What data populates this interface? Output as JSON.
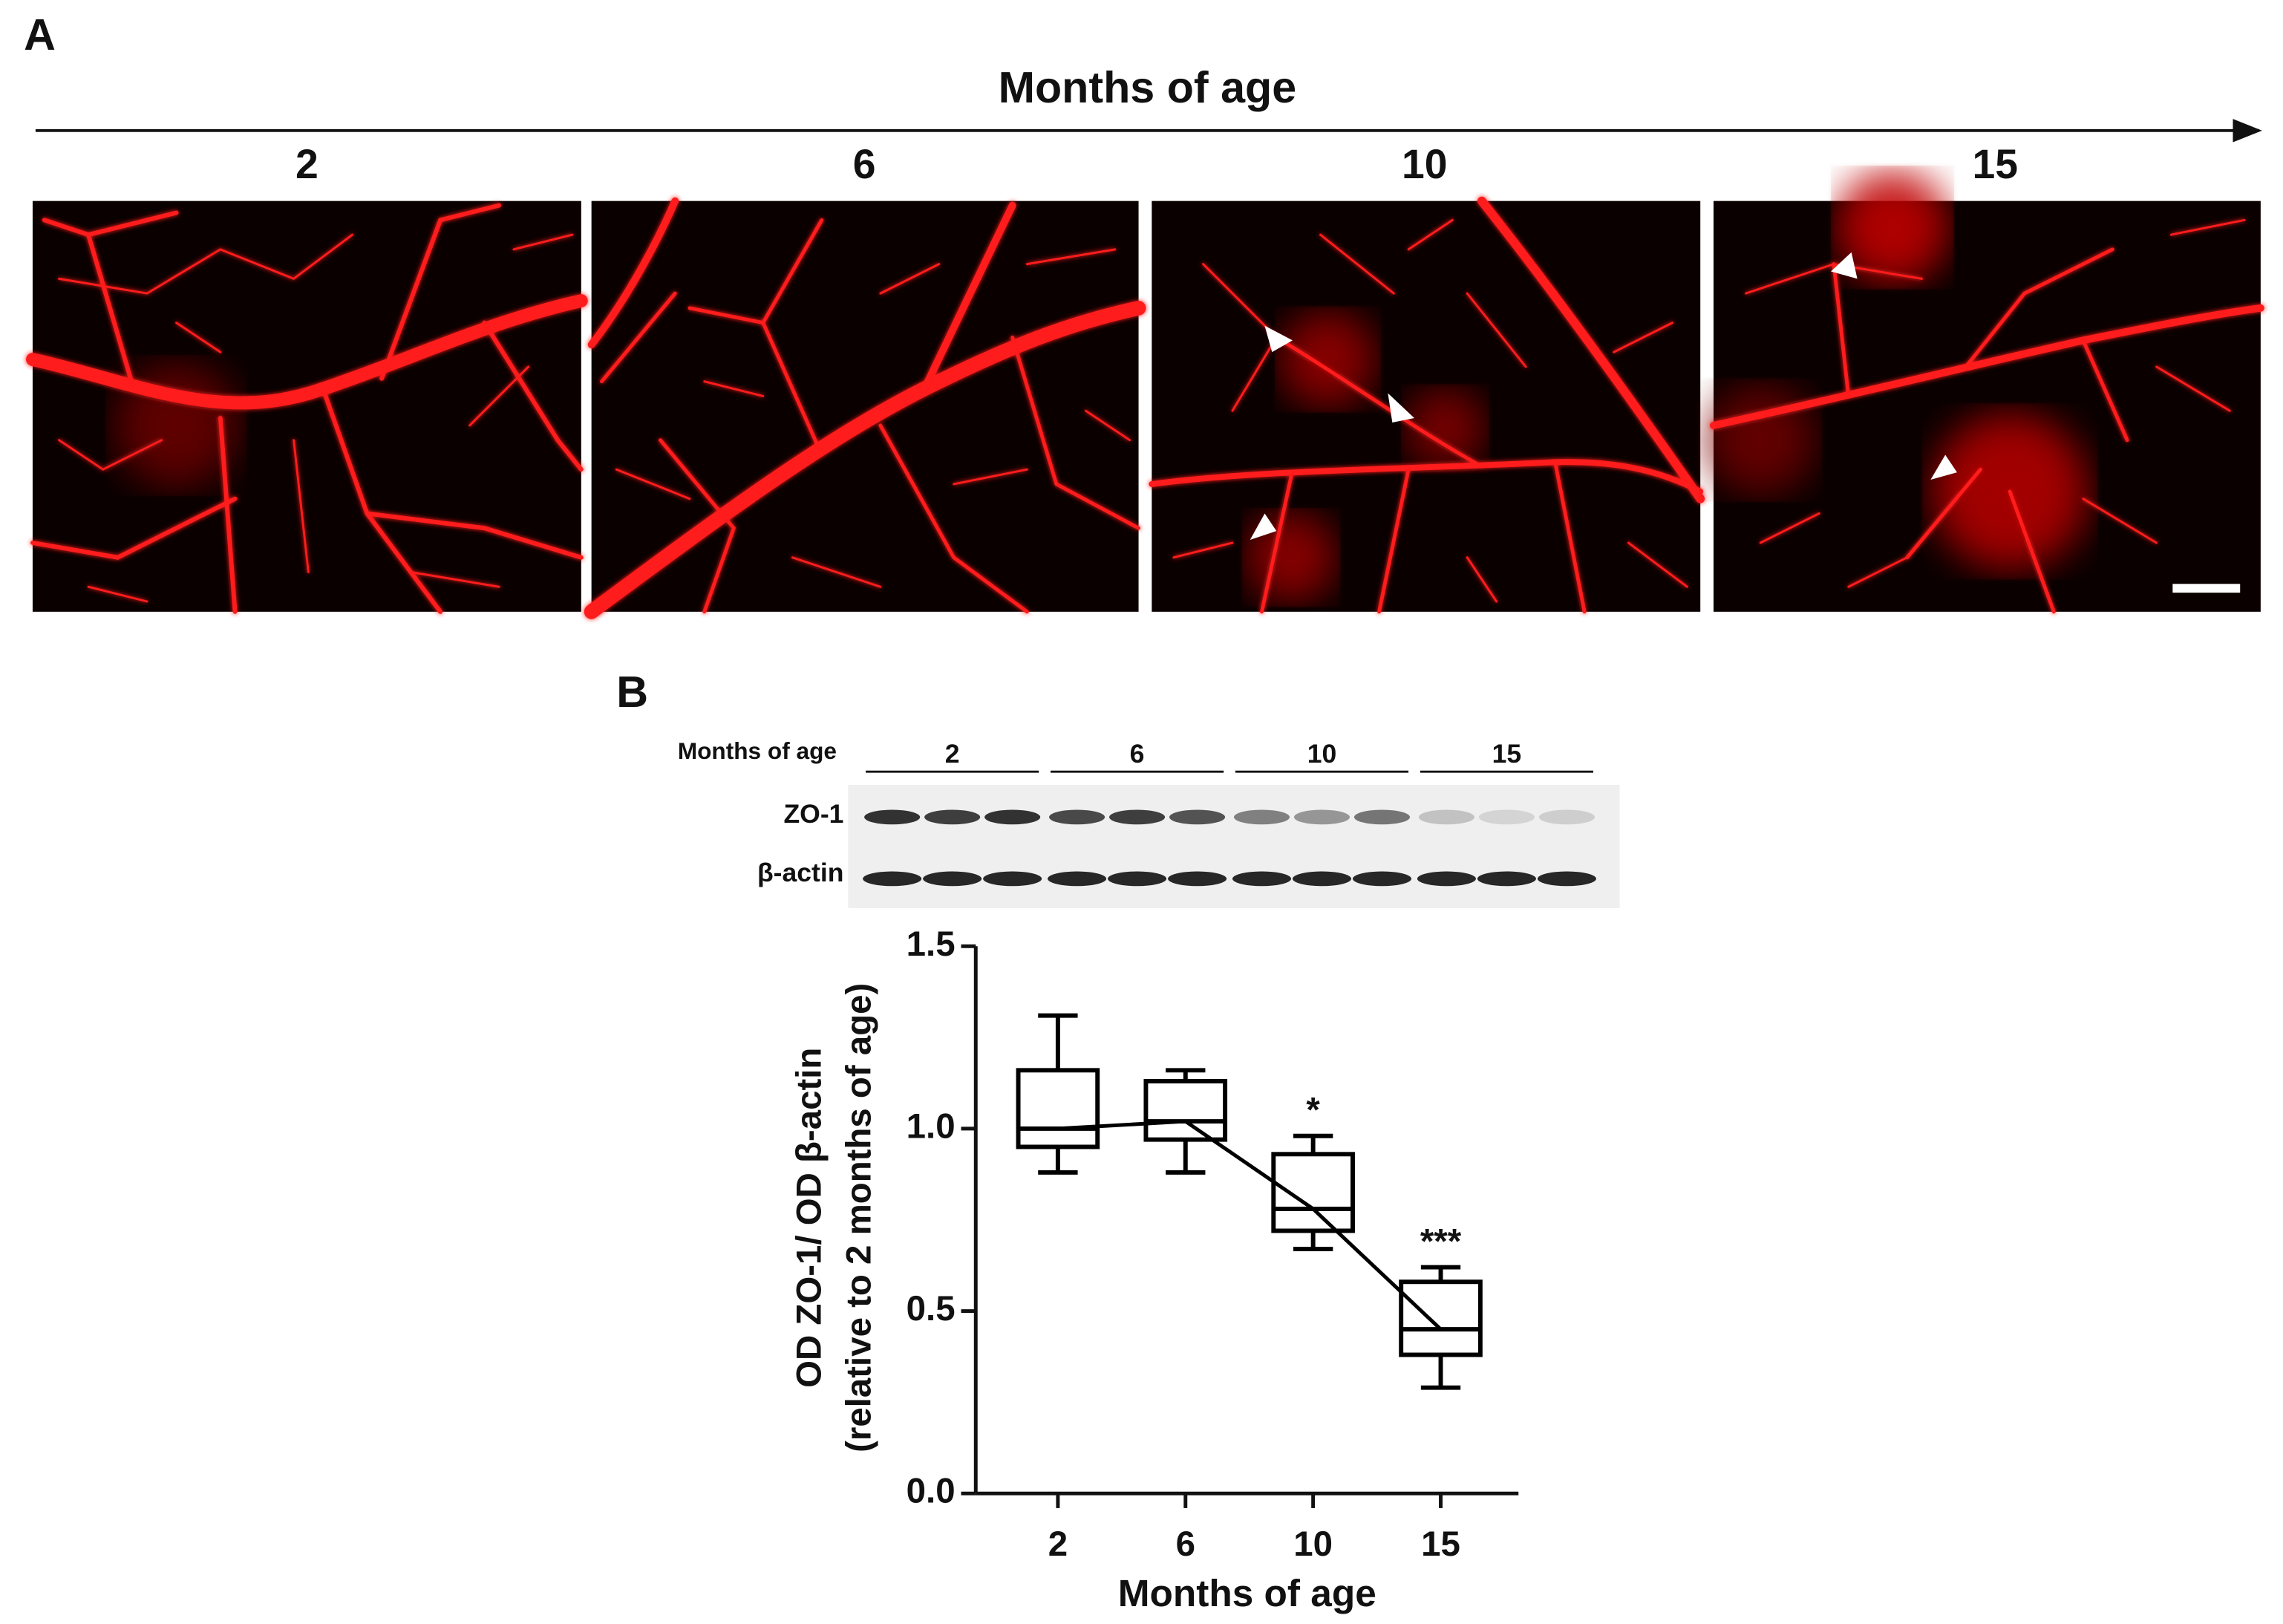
{
  "panel_a": {
    "label": "A",
    "title": "Months of age",
    "images": [
      {
        "label": "2"
      },
      {
        "label": "6"
      },
      {
        "label": "10"
      },
      {
        "label": "15"
      }
    ]
  },
  "panel_b": {
    "label": "B",
    "blot": {
      "title": "Months of age",
      "groups": [
        "2",
        "6",
        "10",
        "15"
      ],
      "rows": [
        "ZO-1",
        "β-actin"
      ]
    }
  },
  "chart_data": {
    "type": "box",
    "categories": [
      "2",
      "6",
      "10",
      "15"
    ],
    "min": [
      0.88,
      0.88,
      0.67,
      0.29
    ],
    "q1": [
      0.95,
      0.97,
      0.72,
      0.38
    ],
    "median": [
      1.0,
      1.02,
      0.78,
      0.45
    ],
    "q3": [
      1.16,
      1.13,
      0.93,
      0.58
    ],
    "max": [
      1.31,
      1.16,
      0.98,
      0.62
    ],
    "color": "#000000",
    "connect_medians": true,
    "ylim": [
      0,
      1.5
    ],
    "yticks": [
      {
        "value": 0,
        "label": "0.0"
      },
      0.5,
      {
        "value": 1,
        "label": "1.0"
      },
      1.5
    ],
    "y_label": [
      "OD ZO-1/ OD β-actin",
      "(relative to 2 months of age)"
    ],
    "x_label": "Months of age",
    "annotations": [
      {
        "text": "*",
        "x": "10"
      },
      {
        "text": "***",
        "x": "15"
      }
    ]
  }
}
